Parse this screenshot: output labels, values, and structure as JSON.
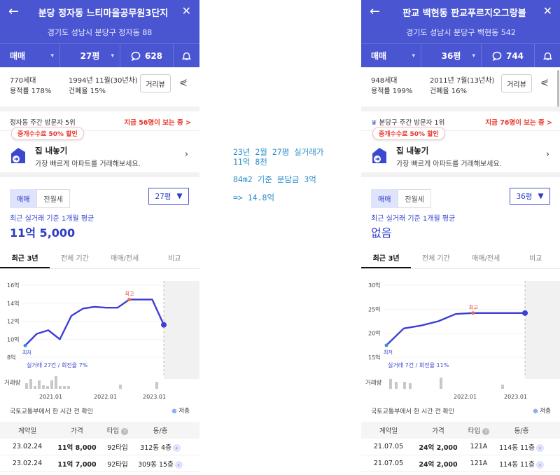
{
  "left": {
    "title": "분당 정자동 느티마을공무원3단지",
    "address": "경기도 성남시 분당구 정자동 88",
    "trade_type": "매매",
    "size": "27평",
    "comments": "628",
    "units": "770세대",
    "floor_area_ratio": "용적률 178%",
    "built": "1994년 11월(30년차)",
    "coverage": "건폐율 15%",
    "street_view": "거리뷰",
    "visitors": "정자동 주간 방문자 5위",
    "viewing_now": "지금 56명이 보는 중 >",
    "discount": "중개수수료 50% 할인",
    "sell_title": "집 내놓기",
    "sell_sub": "가장 빠르게 아파트를 거래해보세요.",
    "tab_sale": "매매",
    "tab_rent": "전월세",
    "size_select": "27평",
    "avg_label": "최근 실거래 기준 1개월 평균",
    "avg_value": "11억 5,000",
    "period_tabs": [
      "최근 3년",
      "전체 기간",
      "매매/전세",
      "비교"
    ],
    "source": "국토교통부에서 한 시간 전 확인",
    "legend": "저층",
    "table_headers": [
      "계약일",
      "가격",
      "타입",
      "동/층"
    ],
    "rows": [
      {
        "date": "23.02.24",
        "price": "11억 8,000",
        "type": "92타입",
        "dong": "312동 4층"
      },
      {
        "date": "23.02.24",
        "price": "11억 7,000",
        "type": "92타입",
        "dong": "309동 15층"
      }
    ]
  },
  "right": {
    "title": "판교 백현동 판교푸르지오그랑블",
    "address": "경기도 성남시 분당구 백현동 542",
    "trade_type": "매매",
    "size": "36평",
    "comments": "744",
    "units": "948세대",
    "floor_area_ratio": "용적률 199%",
    "built": "2011년 7월(13년차)",
    "coverage": "건폐율 16%",
    "street_view": "거리뷰",
    "visitors": "분당구 주간 방문자 1위",
    "viewing_now": "지금 76명이 보는 중 >",
    "discount": "중개수수료 50% 할인",
    "sell_title": "집 내놓기",
    "sell_sub": "가장 빠르게 아파트를 거래해보세요.",
    "tab_sale": "매매",
    "tab_rent": "전월세",
    "size_select": "36평",
    "avg_label": "최근 실거래 기준 1개월 평균",
    "avg_value": "없음",
    "period_tabs": [
      "최근 3년",
      "전체 기간",
      "매매/전세",
      "비교"
    ],
    "source": "국토교통부에서 한 시간 전 확인",
    "legend": "저층",
    "table_headers": [
      "계약일",
      "가격",
      "타입",
      "동/층"
    ],
    "rows": [
      {
        "date": "21.07.05",
        "price": "24억 2,000",
        "type": "121A",
        "dong": "114동 11층"
      },
      {
        "date": "21.07.05",
        "price": "24억 2,000",
        "type": "121A",
        "dong": "114동 11층"
      }
    ]
  },
  "notes": {
    "line1": "23년 2월 27평 실거래가",
    "line2": "11억 8천",
    "line3": "84m2 기준 분담금 3억",
    "line4": "=> 14.8억"
  },
  "chart_data": [
    {
      "type": "line",
      "yticks": [
        "16억",
        "14억",
        "12억",
        "10억",
        "8억"
      ],
      "ylim": [
        8,
        16
      ],
      "xticks": [
        "2021.01",
        "2022.01",
        "2023.01"
      ],
      "high_label": "최고",
      "low_label": "최저",
      "count_label": "실거래 27건 / 회전율 7%",
      "volume_label": "거래량",
      "series": [
        {
          "values": [
            9.3,
            10.6,
            11.0,
            10.0,
            12.6,
            13.4,
            13.6,
            13.5,
            13.5,
            14.4,
            14.4,
            14.4,
            11.6
          ]
        }
      ],
      "accent": "#3b3fd6"
    },
    {
      "type": "line",
      "yticks": [
        "30억",
        "25억",
        "20억",
        "15억"
      ],
      "ylim": [
        15,
        30
      ],
      "xticks": [
        "2022.01",
        "2023.01"
      ],
      "high_label": "최고",
      "low_label": "최저",
      "count_label": "실거래 7건 / 회전율 11%",
      "volume_label": "거래량",
      "series": [
        {
          "values": [
            17.5,
            21.0,
            21.6,
            22.5,
            24.0,
            24.2,
            24.2,
            24.2,
            24.2
          ]
        }
      ],
      "accent": "#3b3fd6"
    }
  ]
}
